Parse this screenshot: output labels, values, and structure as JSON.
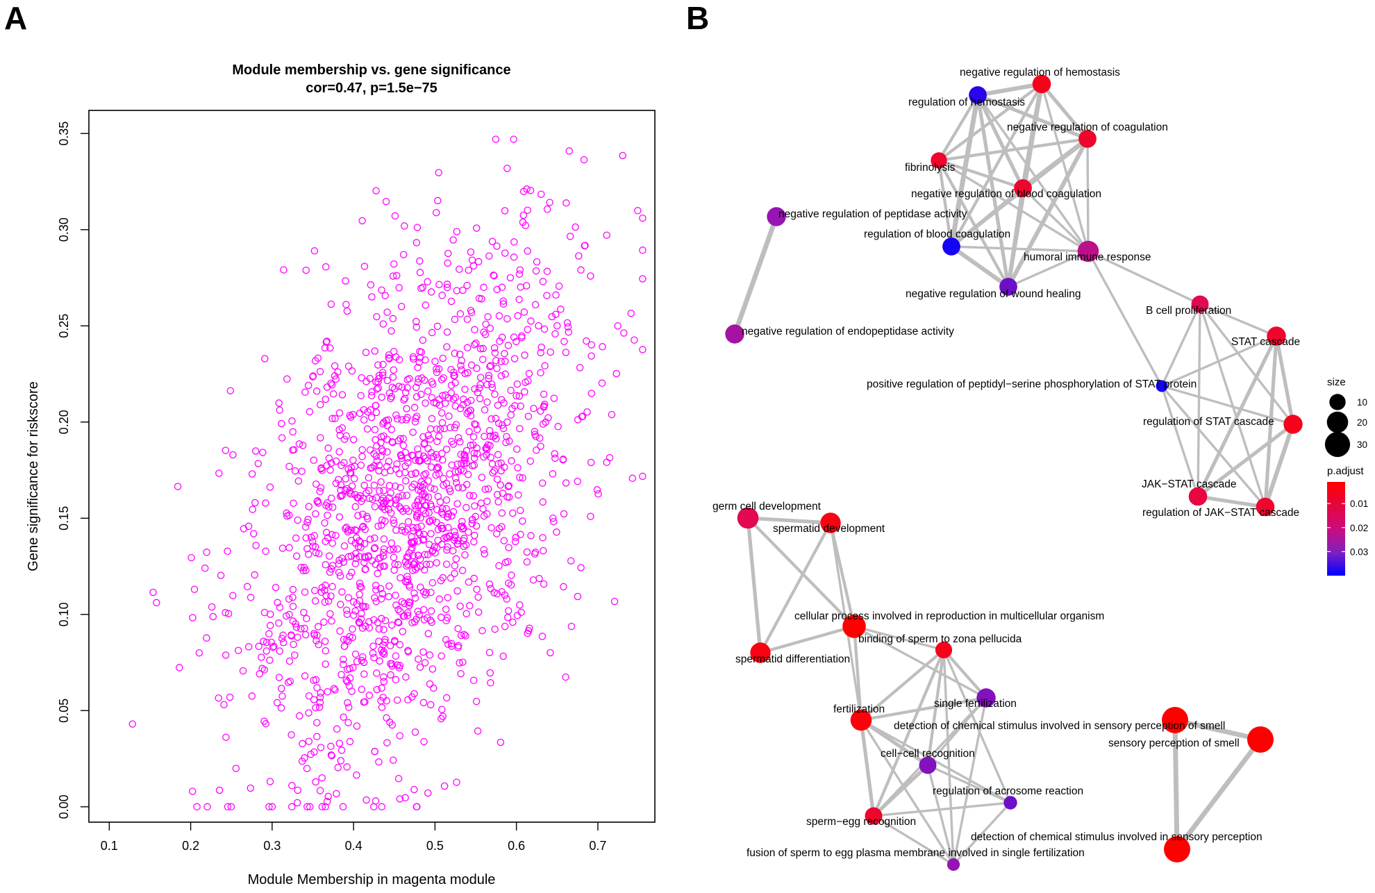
{
  "panels": {
    "a_label": "A",
    "b_label": "B"
  },
  "chart_data": [
    {
      "type": "scatter",
      "title": "Module membership vs. gene significance",
      "subtitle": "cor=0.47, p=1.5e−75",
      "xlabel": "Module Membership in magenta module",
      "ylabel": "Gene significance for riskscore",
      "xlim": [
        0.075,
        0.77
      ],
      "ylim": [
        -0.008,
        0.362
      ],
      "xticks": [
        0.1,
        0.2,
        0.3,
        0.4,
        0.5,
        0.6,
        0.7
      ],
      "xtick_labels": [
        "0.1",
        "0.2",
        "0.3",
        "0.4",
        "0.5",
        "0.6",
        "0.7"
      ],
      "yticks": [
        0.0,
        0.05,
        0.1,
        0.15,
        0.2,
        0.25,
        0.3,
        0.35
      ],
      "ytick_labels": [
        "0.00",
        "0.05",
        "0.10",
        "0.15",
        "0.20",
        "0.25",
        "0.30",
        "0.35"
      ],
      "marker": "open-circle",
      "color": "#ff00ff",
      "grid": false,
      "n_points": 1500,
      "cor": 0.47,
      "p_value": "1.5e-75",
      "x_mean": 0.47,
      "x_sd": 0.105,
      "y_mean": 0.155,
      "y_sd": 0.068
    },
    {
      "type": "network",
      "edge_color": "#bebebe",
      "nodes": [
        {
          "id": "neg_hemostasis",
          "label": "negative regulation of hemostasis",
          "size": 14,
          "p_adjust": 0.004
        },
        {
          "id": "reg_hemostasis",
          "label": "regulation of hemostasis",
          "size": 13,
          "p_adjust": 0.036
        },
        {
          "id": "neg_coag",
          "label": "negative regulation of coagulation",
          "size": 13,
          "p_adjust": 0.006
        },
        {
          "id": "fibrinolysis",
          "label": "fibrinolysis",
          "size": 10,
          "p_adjust": 0.006
        },
        {
          "id": "neg_blood_coag",
          "label": "negative regulation of blood coagulation",
          "size": 13,
          "p_adjust": 0.006
        },
        {
          "id": "neg_peptidase",
          "label": "negative regulation of peptidase activity",
          "size": 15,
          "p_adjust": 0.025
        },
        {
          "id": "reg_blood_coag",
          "label": "regulation of blood coagulation",
          "size": 13,
          "p_adjust": 0.038
        },
        {
          "id": "humoral",
          "label": "humoral immune response",
          "size": 20,
          "p_adjust": 0.018
        },
        {
          "id": "neg_wound",
          "label": "negative regulation of wound healing",
          "size": 13,
          "p_adjust": 0.029
        },
        {
          "id": "neg_endopeptidase",
          "label": "negative regulation of endopeptidase activity",
          "size": 15,
          "p_adjust": 0.022
        },
        {
          "id": "bcell",
          "label": "B cell proliferation",
          "size": 12,
          "p_adjust": 0.01
        },
        {
          "id": "stat",
          "label": "STAT cascade",
          "size": 15,
          "p_adjust": 0.006
        },
        {
          "id": "pos_pep_ser",
          "label": "positive regulation of peptidyl−serine phosphorylation of STAT protein",
          "size": 4,
          "p_adjust": 0.038
        },
        {
          "id": "reg_stat",
          "label": "regulation of STAT cascade",
          "size": 15,
          "p_adjust": 0.004
        },
        {
          "id": "jakstat",
          "label": "JAK−STAT cascade",
          "size": 14,
          "p_adjust": 0.008
        },
        {
          "id": "reg_jakstat",
          "label": "regulation of JAK−STAT cascade",
          "size": 14,
          "p_adjust": 0.006
        },
        {
          "id": "germ",
          "label": "germ cell development",
          "size": 20,
          "p_adjust": 0.01
        },
        {
          "id": "spermatid_dev",
          "label": "spermatid development",
          "size": 18,
          "p_adjust": 0.003
        },
        {
          "id": "cellular",
          "label": "cellular process involved in reproduction in multicellular organism",
          "size": 25,
          "p_adjust": 0.001
        },
        {
          "id": "spermatid_diff",
          "label": "spermatid differentiation",
          "size": 18,
          "p_adjust": 0.003
        },
        {
          "id": "binding",
          "label": "binding of sperm to zona pellucida",
          "size": 11,
          "p_adjust": 0.004
        },
        {
          "id": "single_fert",
          "label": "single fertilization",
          "size": 15,
          "p_adjust": 0.027
        },
        {
          "id": "fertilization",
          "label": "fertilization",
          "size": 20,
          "p_adjust": 0.002
        },
        {
          "id": "det_smell",
          "label": "detection of chemical stimulus involved in sensory perception of smell",
          "size": 34,
          "p_adjust": 0.001
        },
        {
          "id": "sens_smell",
          "label": "sensory perception of smell",
          "size": 34,
          "p_adjust": 0.001
        },
        {
          "id": "cell_recog",
          "label": "cell−cell recognition",
          "size": 12,
          "p_adjust": 0.027
        },
        {
          "id": "reg_acrosome",
          "label": "regulation of acrosome reaction",
          "size": 6,
          "p_adjust": 0.029
        },
        {
          "id": "sperm_egg",
          "label": "sperm−egg recognition",
          "size": 12,
          "p_adjust": 0.006
        },
        {
          "id": "det_sensory",
          "label": "detection of chemical stimulus involved in sensory perception",
          "size": 34,
          "p_adjust": 0.001
        },
        {
          "id": "fusion",
          "label": "fusion of sperm to egg plasma membrane involved in single fertilization",
          "size": 5,
          "p_adjust": 0.025
        }
      ],
      "edges": [
        [
          "neg_hemostasis",
          "reg_hemostasis",
          5
        ],
        [
          "neg_hemostasis",
          "neg_coag",
          4
        ],
        [
          "neg_hemostasis",
          "fibrinolysis",
          3
        ],
        [
          "neg_hemostasis",
          "neg_blood_coag",
          6
        ],
        [
          "neg_hemostasis",
          "reg_blood_coag",
          3
        ],
        [
          "neg_hemostasis",
          "humoral",
          2
        ],
        [
          "neg_hemostasis",
          "neg_wound",
          4
        ],
        [
          "reg_hemostasis",
          "neg_coag",
          4
        ],
        [
          "reg_hemostasis",
          "fibrinolysis",
          3
        ],
        [
          "reg_hemostasis",
          "neg_blood_coag",
          4
        ],
        [
          "reg_hemostasis",
          "reg_blood_coag",
          6
        ],
        [
          "reg_hemostasis",
          "humoral",
          2
        ],
        [
          "reg_hemostasis",
          "neg_wound",
          4
        ],
        [
          "neg_coag",
          "fibrinolysis",
          3
        ],
        [
          "neg_coag",
          "neg_blood_coag",
          6
        ],
        [
          "neg_coag",
          "reg_blood_coag",
          4
        ],
        [
          "neg_coag",
          "humoral",
          2
        ],
        [
          "neg_coag",
          "neg_wound",
          5
        ],
        [
          "fibrinolysis",
          "neg_blood_coag",
          3
        ],
        [
          "fibrinolysis",
          "reg_blood_coag",
          3
        ],
        [
          "fibrinolysis",
          "humoral",
          2
        ],
        [
          "fibrinolysis",
          "neg_wound",
          3
        ],
        [
          "neg_blood_coag",
          "reg_blood_coag",
          4
        ],
        [
          "neg_blood_coag",
          "humoral",
          2
        ],
        [
          "neg_blood_coag",
          "neg_wound",
          5
        ],
        [
          "reg_blood_coag",
          "humoral",
          2
        ],
        [
          "reg_blood_coag",
          "neg_wound",
          5
        ],
        [
          "humoral",
          "neg_wound",
          2
        ],
        [
          "humoral",
          "bcell",
          2
        ],
        [
          "humoral",
          "pos_pep_ser",
          2
        ],
        [
          "neg_peptidase",
          "neg_endopeptidase",
          6
        ],
        [
          "bcell",
          "stat",
          2
        ],
        [
          "bcell",
          "pos_pep_ser",
          2
        ],
        [
          "bcell",
          "reg_stat",
          2
        ],
        [
          "bcell",
          "jakstat",
          2
        ],
        [
          "bcell",
          "reg_jakstat",
          2
        ],
        [
          "stat",
          "pos_pep_ser",
          2
        ],
        [
          "stat",
          "reg_stat",
          4
        ],
        [
          "stat",
          "jakstat",
          4
        ],
        [
          "stat",
          "reg_jakstat",
          4
        ],
        [
          "pos_pep_ser",
          "reg_stat",
          2
        ],
        [
          "pos_pep_ser",
          "jakstat",
          2
        ],
        [
          "pos_pep_ser",
          "reg_jakstat",
          2
        ],
        [
          "reg_stat",
          "jakstat",
          4
        ],
        [
          "reg_stat",
          "reg_jakstat",
          5
        ],
        [
          "jakstat",
          "reg_jakstat",
          4
        ],
        [
          "germ",
          "spermatid_dev",
          4
        ],
        [
          "germ",
          "cellular",
          3
        ],
        [
          "germ",
          "spermatid_diff",
          4
        ],
        [
          "spermatid_dev",
          "cellular",
          3
        ],
        [
          "spermatid_dev",
          "spermatid_diff",
          3
        ],
        [
          "spermatid_dev",
          "fertilization",
          2
        ],
        [
          "cellular",
          "spermatid_diff",
          3
        ],
        [
          "cellular",
          "binding",
          2
        ],
        [
          "cellular",
          "single_fert",
          2
        ],
        [
          "cellular",
          "fertilization",
          3
        ],
        [
          "binding",
          "single_fert",
          3
        ],
        [
          "binding",
          "fertilization",
          3
        ],
        [
          "binding",
          "cell_recog",
          3
        ],
        [
          "binding",
          "sperm_egg",
          3
        ],
        [
          "binding",
          "fusion",
          2
        ],
        [
          "binding",
          "reg_acrosome",
          2
        ],
        [
          "single_fert",
          "fertilization",
          3
        ],
        [
          "single_fert",
          "cell_recog",
          2
        ],
        [
          "single_fert",
          "sperm_egg",
          2
        ],
        [
          "single_fert",
          "fusion",
          2
        ],
        [
          "fertilization",
          "cell_recog",
          4
        ],
        [
          "fertilization",
          "sperm_egg",
          4
        ],
        [
          "fertilization",
          "fusion",
          2
        ],
        [
          "fertilization",
          "reg_acrosome",
          2
        ],
        [
          "cell_recog",
          "sperm_egg",
          4
        ],
        [
          "cell_recog",
          "reg_acrosome",
          2
        ],
        [
          "cell_recog",
          "fusion",
          2
        ],
        [
          "sperm_egg",
          "fusion",
          2
        ],
        [
          "sperm_egg",
          "reg_acrosome",
          2
        ],
        [
          "reg_acrosome",
          "fusion",
          2
        ],
        [
          "det_smell",
          "sens_smell",
          6
        ],
        [
          "det_smell",
          "det_sensory",
          6
        ],
        [
          "sens_smell",
          "det_sensory",
          6
        ]
      ],
      "legend": {
        "size_title": "size",
        "size_values": [
          10,
          20,
          30
        ],
        "color_title": "p.adjust",
        "color_ticks": [
          0.01,
          0.02,
          0.03
        ],
        "color_tick_labels": [
          "0.01",
          "0.02",
          "0.03"
        ],
        "color_range": [
          0.001,
          0.04
        ],
        "colors": {
          "low": "#ff0000",
          "high": "#0000ff"
        }
      }
    }
  ]
}
